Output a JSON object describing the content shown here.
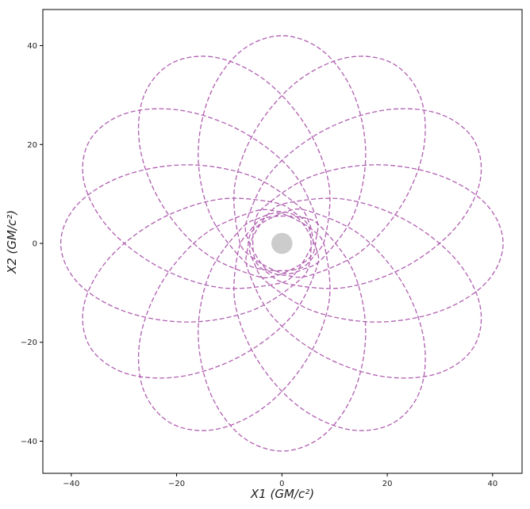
{
  "chart_data": {
    "type": "line",
    "x_label": "X1 (GM/c²)",
    "y_label": "X2 (GM/c²)",
    "xlim": [
      -45.4,
      45.6
    ],
    "ylim": [
      -46.5,
      47.3
    ],
    "xticks": [
      {
        "value": -40,
        "label": "−40"
      },
      {
        "value": -20,
        "label": "−20"
      },
      0,
      20,
      40
    ],
    "yticks": [
      {
        "value": -40,
        "label": "−40"
      },
      {
        "value": -20,
        "label": "−20"
      },
      0,
      20,
      40
    ],
    "center_disk": {
      "radius": 2,
      "color": "#cccccc"
    },
    "series": [
      {
        "color": "#b05fb0",
        "x": [
          6,
          5.2,
          2.8,
          -6,
          -18,
          -30,
          -38.8,
          -42,
          -38.8,
          -30,
          -18,
          -6,
          2.8,
          5.2,
          5.2,
          2.4,
          -1.6,
          -12.1,
          -23.5,
          -32.9,
          -37.6,
          -36.4,
          -29.6,
          -19.1,
          -7.7,
          1.7,
          6.4,
          6.5,
          3,
          -1,
          -5.5,
          -14.9,
          -22.7,
          -26.9,
          -26.3,
          -21,
          -12.5,
          -3.1,
          4.7,
          8.9,
          8.3,
          6.2,
          0,
          -4.1,
          -7.9,
          -13.7,
          -15.9,
          -13.7,
          -7.9,
          0,
          7.9,
          13.7,
          15.9,
          13.7,
          7.9,
          4.1,
          -3,
          -6.2,
          -8.3,
          -8.9,
          -4.7,
          3.1,
          12.5,
          21,
          26.3,
          26.9,
          22.7,
          14.9,
          5.5,
          1,
          -5.2,
          -6.5,
          -6.4,
          -1.7,
          7.7,
          19.1,
          29.6,
          36.4,
          37.6,
          32.9,
          23.5,
          12.1,
          1.6,
          -2.4,
          -6,
          -5.2,
          -2.8,
          6,
          18,
          30,
          38.8,
          42,
          38.8,
          30,
          18,
          6,
          -2.8,
          -5.2,
          -5.2,
          -2.4,
          1.6,
          12.1,
          23.5,
          32.9,
          37.6,
          36.4,
          29.6,
          19.1,
          7.7,
          -1.7,
          -6.4,
          -6.5,
          -3,
          1,
          5.5,
          14.9,
          22.7,
          26.9,
          26.3,
          21,
          12.5,
          3.1,
          -4.7,
          -8.9,
          -8.3,
          -6.2,
          0,
          4.1,
          7.9,
          13.7,
          15.9,
          13.7,
          7.9,
          0,
          -7.9,
          -13.7,
          -15.9,
          -13.7,
          -7.9,
          -4.1,
          3,
          6.2,
          8.3,
          8.9,
          4.7,
          -3.1,
          -12.5,
          -21,
          -26.3,
          -26.9,
          -22.7,
          -14.9,
          -5.5,
          -1,
          5.2,
          6.5,
          6.4,
          1.7,
          -7.7,
          -19.1,
          -29.6,
          -36.4,
          -37.6,
          -32.9,
          -23.5,
          -12.1,
          -1.6,
          2.4,
          6
        ],
        "y": [
          0,
          4.1,
          7.9,
          13.7,
          15.9,
          13.7,
          7.9,
          0,
          -7.9,
          -13.7,
          -15.9,
          -13.7,
          -7.9,
          -4.1,
          3,
          6.2,
          8.3,
          8.9,
          4.7,
          -3.1,
          -12.5,
          -21,
          -26.3,
          -26.9,
          -22.7,
          -14.9,
          -5.5,
          -1,
          5.2,
          6.5,
          6.4,
          1.7,
          -7.7,
          -19.1,
          -29.6,
          -36.4,
          -37.6,
          -32.9,
          -23.5,
          -12.1,
          -1.6,
          2.4,
          6,
          5.2,
          2.8,
          -6,
          -18,
          -30,
          -38.8,
          -42,
          -38.8,
          -30,
          -18,
          -6,
          2.8,
          5.2,
          5.2,
          2.4,
          -1.6,
          -12.1,
          -23.5,
          -32.9,
          -37.6,
          -36.4,
          -29.6,
          -19.1,
          -7.7,
          1.7,
          6.4,
          6.5,
          3,
          -1,
          -5.5,
          -14.9,
          -22.7,
          -26.9,
          -26.3,
          -21,
          -12.5,
          -3.1,
          4.7,
          8.9,
          8.3,
          6.2,
          0,
          -4.1,
          -7.9,
          -13.7,
          -15.9,
          -13.7,
          -7.9,
          0,
          7.9,
          13.7,
          15.9,
          13.7,
          7.9,
          4.1,
          -3,
          -6.2,
          -8.3,
          -8.9,
          -4.7,
          3.1,
          12.5,
          21,
          26.3,
          26.9,
          22.7,
          14.9,
          5.5,
          1,
          -5.2,
          -6.5,
          -6.4,
          -1.7,
          7.7,
          19.1,
          29.6,
          36.4,
          37.6,
          32.9,
          23.5,
          12.1,
          1.6,
          -2.4,
          -6,
          -5.2,
          -2.8,
          6,
          18,
          30,
          38.8,
          42,
          38.8,
          30,
          18,
          6,
          -2.8,
          -5.2,
          -5.2,
          -2.4,
          1.6,
          12.1,
          23.5,
          32.9,
          37.6,
          36.4,
          29.6,
          19.1,
          7.7,
          -1.7,
          -6.4,
          -6.5,
          -3,
          1,
          5.5,
          14.9,
          22.7,
          26.9,
          26.3,
          21,
          12.5,
          3.1,
          -4.7,
          -8.9,
          -8.3,
          -6.2,
          0
        ]
      }
    ]
  }
}
